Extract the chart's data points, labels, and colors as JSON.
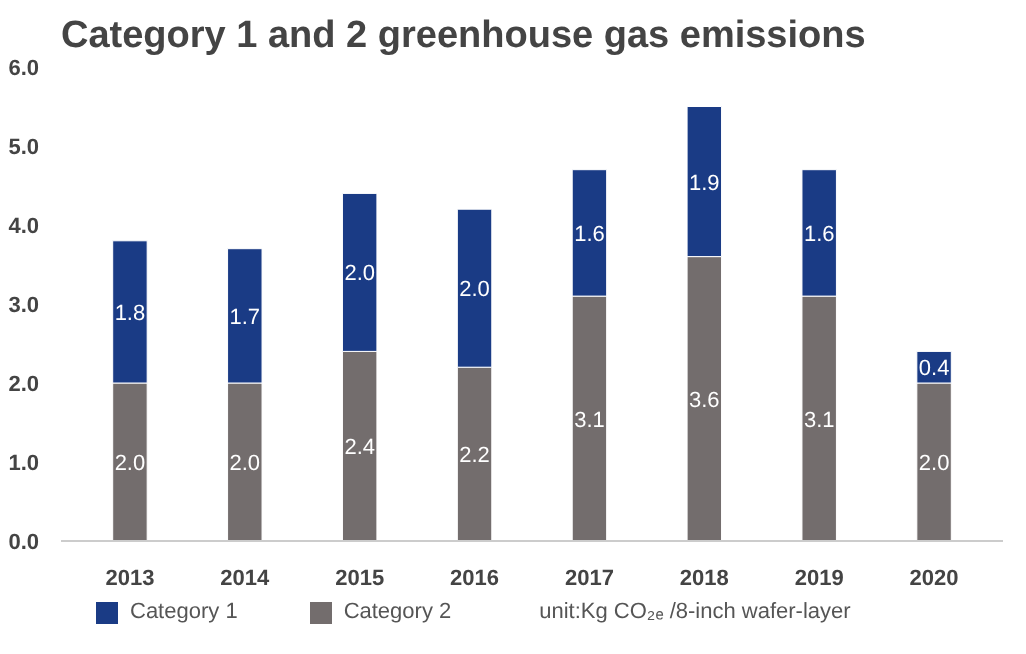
{
  "chart_data": {
    "type": "bar",
    "title": "Category 1 and 2 greenhouse gas emissions",
    "stacked": true,
    "categories": [
      "2013",
      "2014",
      "2015",
      "2016",
      "2017",
      "2018",
      "2019",
      "2020"
    ],
    "series": [
      {
        "name": "Category 2",
        "color": "#736d6d",
        "values": [
          2.0,
          2.0,
          2.4,
          2.2,
          3.1,
          3.6,
          3.1,
          2.0
        ],
        "value_labels": [
          "2.0",
          "2.0",
          "2.4",
          "2.2",
          "3.1",
          "3.6",
          "3.1",
          "2.0"
        ]
      },
      {
        "name": "Category 1",
        "color": "#1a3b85",
        "values": [
          1.8,
          1.7,
          2.0,
          2.0,
          1.6,
          1.9,
          1.6,
          0.4
        ],
        "value_labels": [
          "1.8",
          "1.7",
          "2.0",
          "2.0",
          "1.6",
          "1.9",
          "1.6",
          "0.4"
        ]
      }
    ],
    "ylim": [
      0,
      6.0
    ],
    "yticks": [
      {
        "value": 0,
        "label": "0.0"
      },
      {
        "value": 1,
        "label": "1.0"
      },
      {
        "value": 2,
        "label": "2.0"
      },
      {
        "value": 3,
        "label": "3.0"
      },
      {
        "value": 4,
        "label": "4.0"
      },
      {
        "value": 5,
        "label": "5.0"
      },
      {
        "value": 6,
        "label": "6.0"
      }
    ],
    "legend": "bottom",
    "annotations": [
      "unit:Kg CO₂ₑ /8-inch wafer-layer"
    ]
  }
}
